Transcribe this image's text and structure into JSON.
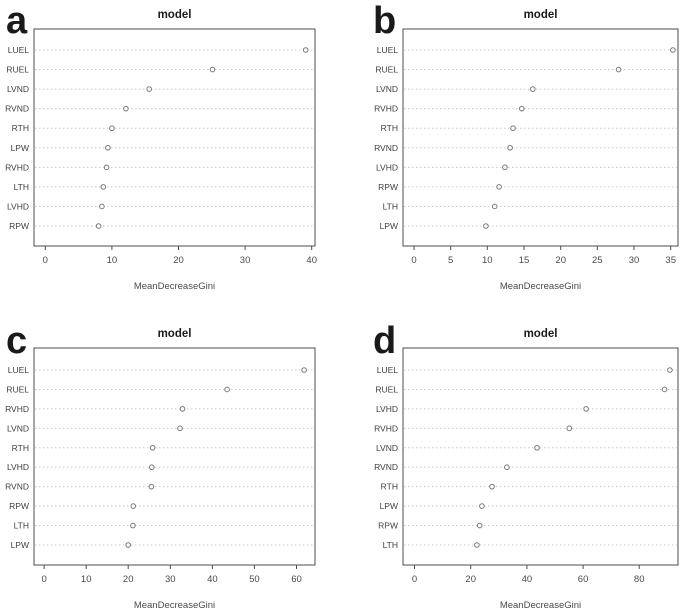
{
  "colors": {
    "background": "#ffffff",
    "title_text": "#1c1c1c",
    "panel_letter": "#1a1a1a",
    "label_text": "#3f3f3f",
    "tick_text": "#4a4a4a",
    "axis_box": "#4c4c4c",
    "gridline": "#c9c9c9",
    "point_stroke": "#787878",
    "point_fill": "#ffffff"
  },
  "chart_data": [
    {
      "type": "scatter",
      "variant": "dotchart",
      "panel_letter": "a",
      "title": "model",
      "xlabel": "MeanDecreaseGini",
      "grid": "horizontal-dotted",
      "legend": "none",
      "categories": [
        "LUEL",
        "RUEL",
        "LVND",
        "RVND",
        "RTH",
        "LPW",
        "RVHD",
        "LTH",
        "LVHD",
        "RPW"
      ],
      "values": [
        39.1,
        25.1,
        15.6,
        12.1,
        10.0,
        9.4,
        9.2,
        8.7,
        8.5,
        8.0
      ],
      "xticks": [
        0,
        10,
        20,
        30,
        40
      ],
      "xlim": [
        -1.7,
        40.5
      ]
    },
    {
      "type": "scatter",
      "variant": "dotchart",
      "panel_letter": "b",
      "title": "model",
      "xlabel": "MeanDecreaseGini",
      "grid": "horizontal-dotted",
      "legend": "none",
      "categories": [
        "LUEL",
        "RUEL",
        "LVND",
        "RVHD",
        "RTH",
        "RVND",
        "LVHD",
        "RPW",
        "LTH",
        "LPW"
      ],
      "values": [
        35.3,
        27.9,
        16.2,
        14.7,
        13.5,
        13.1,
        12.4,
        11.6,
        11.0,
        9.8
      ],
      "xticks": [
        0,
        5,
        10,
        15,
        20,
        25,
        30,
        35
      ],
      "xlim": [
        -1.5,
        36.0
      ]
    },
    {
      "type": "scatter",
      "variant": "dotchart",
      "panel_letter": "c",
      "title": "model",
      "xlabel": "MeanDecreaseGini",
      "grid": "horizontal-dotted",
      "legend": "none",
      "categories": [
        "LUEL",
        "RUEL",
        "RVHD",
        "LVND",
        "RTH",
        "LVHD",
        "RVND",
        "RPW",
        "LTH",
        "LPW"
      ],
      "values": [
        61.8,
        43.5,
        32.9,
        32.3,
        25.8,
        25.6,
        25.5,
        21.2,
        21.1,
        20.0
      ],
      "xticks": [
        0,
        10,
        20,
        30,
        40,
        50,
        60
      ],
      "xlim": [
        -2.4,
        64.4
      ]
    },
    {
      "type": "scatter",
      "variant": "dotchart",
      "panel_letter": "d",
      "title": "model",
      "xlabel": "MeanDecreaseGini",
      "grid": "horizontal-dotted",
      "legend": "none",
      "categories": [
        "LUEL",
        "RUEL",
        "LVHD",
        "RVHD",
        "LVND",
        "RVND",
        "RTH",
        "LPW",
        "RPW",
        "LTH"
      ],
      "values": [
        90.9,
        89.0,
        61.1,
        55.1,
        43.6,
        32.9,
        27.6,
        24.0,
        23.2,
        22.2
      ],
      "xticks": [
        0,
        20,
        40,
        60,
        80
      ],
      "xlim": [
        -4.1,
        93.8
      ]
    }
  ]
}
